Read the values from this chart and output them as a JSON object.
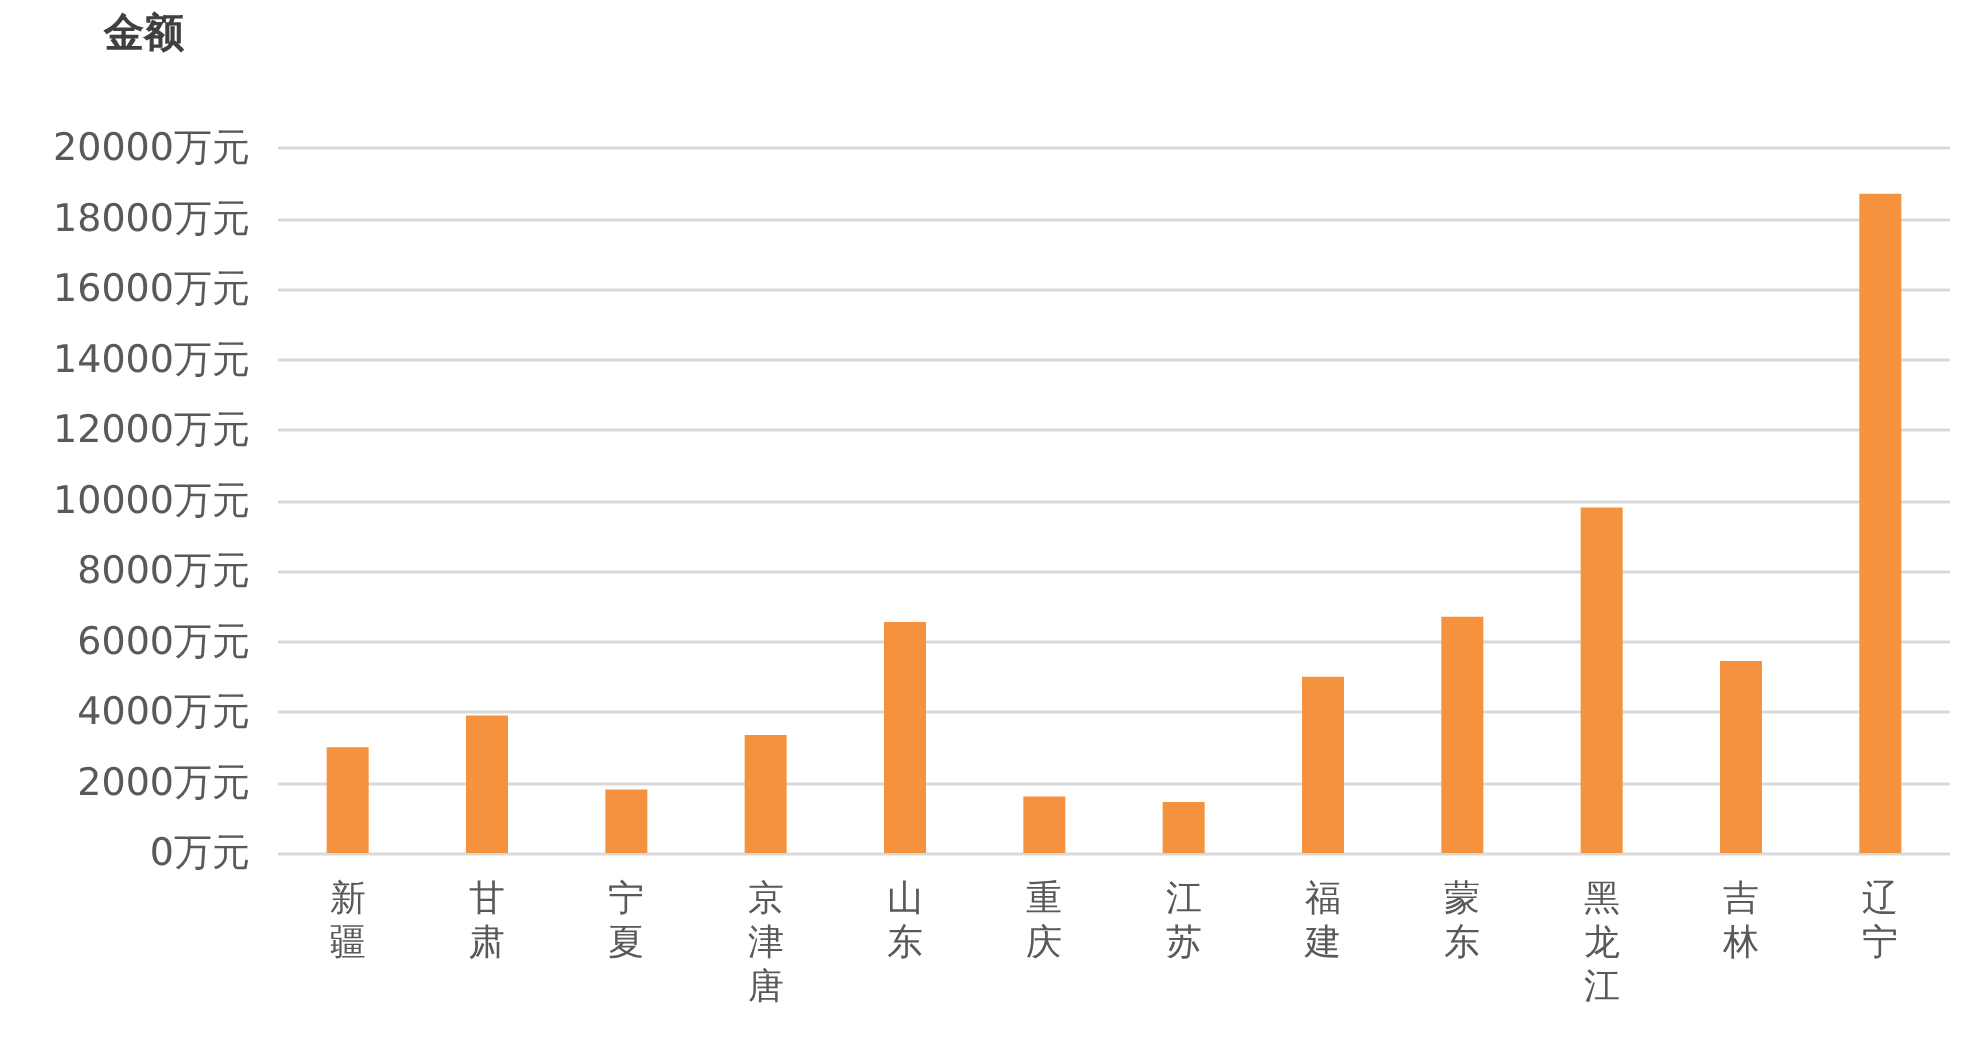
{
  "chart_data": {
    "type": "bar",
    "ylabel": "金额",
    "categories": [
      "新疆",
      "甘肃",
      "宁夏",
      "京津唐",
      "山东",
      "重庆",
      "江苏",
      "福建",
      "蒙东",
      "黑龙江",
      "吉林",
      "辽宁"
    ],
    "values": [
      3000,
      3900,
      1800,
      3350,
      6550,
      1600,
      1450,
      5000,
      6700,
      9800,
      5450,
      18700
    ],
    "color": "#f5923e",
    "ylim": [
      0,
      20000
    ],
    "yticks": [
      {
        "value": 0,
        "label": "0万元"
      },
      {
        "value": 2000,
        "label": "2000万元"
      },
      {
        "value": 4000,
        "label": "4000万元"
      },
      {
        "value": 6000,
        "label": "6000万元"
      },
      {
        "value": 8000,
        "label": "8000万元"
      },
      {
        "value": 10000,
        "label": "10000万元"
      },
      {
        "value": 12000,
        "label": "12000万元"
      },
      {
        "value": 14000,
        "label": "14000万元"
      },
      {
        "value": 16000,
        "label": "16000万元"
      },
      {
        "value": 18000,
        "label": "18000万元"
      },
      {
        "value": 20000,
        "label": "20000万元"
      }
    ],
    "grid": "y"
  }
}
